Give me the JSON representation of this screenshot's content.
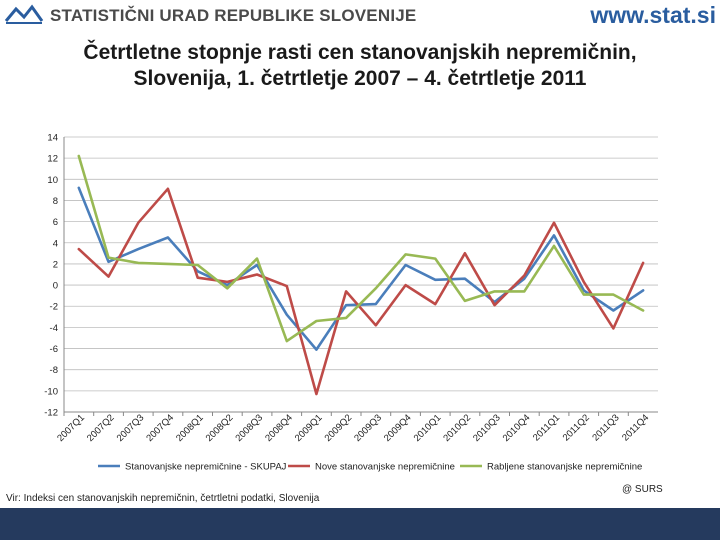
{
  "header": {
    "org_name": "STATISTIČNI URAD REPUBLIKE SLOVENIJE",
    "site": "www.stat.si"
  },
  "title_line1": "Četrtletne stopnje rasti cen stanovanjskih nepremičnin,",
  "title_line2": "Slovenija, 1. četrtletje 2007 – 4. četrtletje 2011",
  "source": "Vir: Indeksi cen stanovanjskih nepremičnin, četrtletni podatki, Slovenija",
  "copyright": "@ SURS",
  "colors": {
    "logo": "#2a5d9f",
    "footer": "#253a5e"
  },
  "chart_data": {
    "type": "line",
    "title": "",
    "xlabel": "",
    "ylabel": "",
    "ylim": [
      -12,
      14
    ],
    "yticks": [
      14,
      12,
      10,
      8,
      6,
      4,
      2,
      0,
      -2,
      -4,
      -6,
      -8,
      -10,
      -12
    ],
    "grid": true,
    "legend": "bottom",
    "categories": [
      "2007Q1",
      "2007Q2",
      "2007Q3",
      "2007Q4",
      "2008Q1",
      "2008Q2",
      "2008Q3",
      "2008Q4",
      "2009Q1",
      "2009Q2",
      "2009Q3",
      "2009Q4",
      "2010Q1",
      "2010Q2",
      "2010Q3",
      "2010Q4",
      "2011Q1",
      "2011Q2",
      "2011Q3",
      "2011Q4"
    ],
    "series": [
      {
        "name": "Stanovanjske nepremičnine - SKUPAJ",
        "color": "#4a7ebb",
        "values": [
          9.2,
          2.2,
          3.4,
          4.5,
          1.3,
          0.0,
          1.9,
          -2.8,
          -6.1,
          -1.9,
          -1.8,
          1.9,
          0.5,
          0.6,
          -1.6,
          0.6,
          4.7,
          -0.5,
          -2.4,
          -0.5
        ]
      },
      {
        "name": "Nove stanovanjske nepremičnine",
        "color": "#be4b48",
        "values": [
          3.4,
          0.8,
          5.9,
          9.1,
          0.7,
          0.3,
          1.0,
          -0.1,
          -10.3,
          -0.6,
          -3.8,
          0.0,
          -1.8,
          3.0,
          -1.9,
          0.9,
          5.9,
          0.3,
          -4.1,
          2.1
        ]
      },
      {
        "name": "Rabljene stanovanjske nepremičnine",
        "color": "#98b954",
        "values": [
          12.2,
          2.6,
          2.1,
          2.0,
          1.9,
          -0.3,
          2.5,
          -5.3,
          -3.4,
          -3.1,
          -0.3,
          2.9,
          2.5,
          -1.5,
          -0.6,
          -0.6,
          3.7,
          -0.9,
          -0.9,
          -2.4
        ]
      }
    ]
  }
}
